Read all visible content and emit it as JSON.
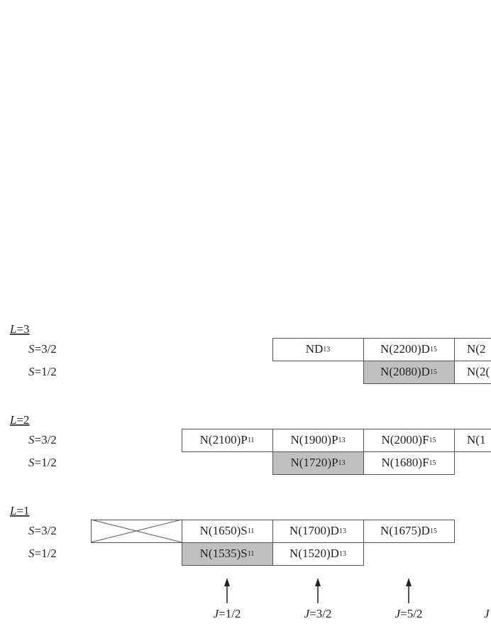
{
  "groups": [
    {
      "label": {
        "var": "L",
        "rest": "=3"
      },
      "rows": [
        {
          "label": {
            "var": "S",
            "rest": "=3/2"
          },
          "cells": [
            null,
            null,
            {
              "text": "ND",
              "sub": "13"
            },
            {
              "text": "N(2200)D",
              "sub": "15"
            },
            {
              "text": "N(2"
            }
          ]
        },
        {
          "label": {
            "var": "S",
            "rest": "=1/2"
          },
          "cells": [
            null,
            null,
            null,
            {
              "text": "N(2080)D",
              "sub": "15",
              "shaded": true
            },
            {
              "text": "N(2("
            }
          ]
        }
      ]
    },
    {
      "label": {
        "var": "L",
        "rest": "=2"
      },
      "rows": [
        {
          "label": {
            "var": "S",
            "rest": "=3/2"
          },
          "cells": [
            null,
            {
              "text": "N(2100)P",
              "sub": "11"
            },
            {
              "text": "N(1900)P",
              "sub": "13"
            },
            {
              "text": "N(2000)F",
              "sub": "15"
            },
            {
              "text": "N(1"
            }
          ]
        },
        {
          "label": {
            "var": "S",
            "rest": "=1/2"
          },
          "cells": [
            null,
            null,
            {
              "text": "N(1720)P",
              "sub": "13",
              "shaded": true
            },
            {
              "text": "N(1680)F",
              "sub": "15"
            }
          ]
        }
      ]
    },
    {
      "label": {
        "var": "L",
        "rest": "=1"
      },
      "rows": [
        {
          "label": {
            "var": "S",
            "rest": "=3/2"
          },
          "cells": [
            {
              "crossed": true
            },
            {
              "text": "N(1650)S",
              "sub": "11"
            },
            {
              "text": "N(1700)D",
              "sub": "13"
            },
            {
              "text": "N(1675)D",
              "sub": "15"
            }
          ]
        },
        {
          "label": {
            "var": "S",
            "rest": "=1/2"
          },
          "cells": [
            null,
            {
              "text": "N(1535)S",
              "sub": "11",
              "shaded": true
            },
            {
              "text": "N(1520)D",
              "sub": "13"
            }
          ]
        }
      ]
    }
  ],
  "j_labels": [
    {
      "var": "J",
      "rest": "=1/2"
    },
    {
      "var": "J",
      "rest": "=3/2"
    },
    {
      "var": "J",
      "rest": "=5/2"
    },
    {
      "var": "J"
    }
  ]
}
